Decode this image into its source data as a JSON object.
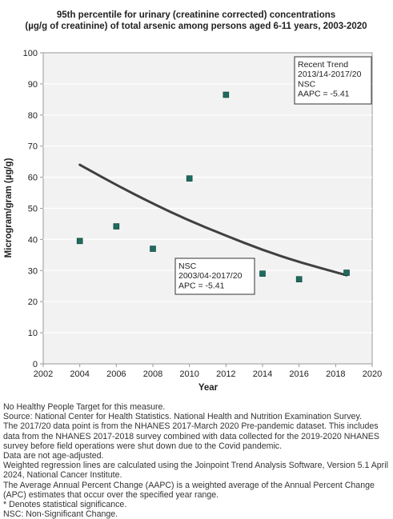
{
  "chart_data": {
    "type": "scatter",
    "title_line1": "95th percentile for urinary (creatinine corrected) concentrations",
    "title_line2": "(µg/g of creatinine) of total arsenic among persons aged 6-11 years, 2003-2020",
    "xlabel": "Year",
    "ylabel": "Microgram/gram (µg/g)",
    "xlim": [
      2002,
      2020
    ],
    "ylim": [
      0,
      100
    ],
    "x_ticks": [
      "2002",
      "2004",
      "2006",
      "2008",
      "2010",
      "2012",
      "2014",
      "2016",
      "2018",
      "2020"
    ],
    "y_ticks": [
      "0",
      "10",
      "20",
      "30",
      "40",
      "50",
      "60",
      "70",
      "80",
      "90",
      "100"
    ],
    "grid": true,
    "points": [
      {
        "x": 2004.0,
        "y": 39.5
      },
      {
        "x": 2006.0,
        "y": 44.2
      },
      {
        "x": 2008.0,
        "y": 37.0
      },
      {
        "x": 2010.0,
        "y": 59.6
      },
      {
        "x": 2012.0,
        "y": 86.5
      },
      {
        "x": 2014.0,
        "y": 29.0
      },
      {
        "x": 2016.0,
        "y": 27.2
      },
      {
        "x": 2018.6,
        "y": 29.3
      }
    ],
    "trend_line": [
      {
        "x": 2004.0,
        "y": 64.0
      },
      {
        "x": 2006.0,
        "y": 57.5
      },
      {
        "x": 2008.0,
        "y": 51.5
      },
      {
        "x": 2010.0,
        "y": 46.0
      },
      {
        "x": 2012.0,
        "y": 41.2
      },
      {
        "x": 2014.0,
        "y": 36.6
      },
      {
        "x": 2016.0,
        "y": 32.7
      },
      {
        "x": 2018.6,
        "y": 28.5
      }
    ],
    "point_color": "#1f6b5e",
    "line_color": "#404040",
    "annotations": {
      "recent_trend": [
        "Recent Trend",
        "2013/14-2017/20",
        "NSC",
        "AAPC = -5.41"
      ],
      "overall_trend": [
        "NSC",
        "2003/04-2017/20",
        "APC = -5.41"
      ]
    }
  },
  "footnotes": [
    "No Healthy People Target for this measure.",
    "Source: National Center for Health Statistics. National Health and Nutrition Examination Survey.",
    "The 2017/20 data point is from the NHANES 2017-March 2020 Pre-pandemic dataset. This includes data from the NHANES 2017-2018 survey combined with data collected for the 2019-2020 NHANES survey before field operations were shut down due to the Covid pandemic.",
    "Data are not age-adjusted.",
    "Weighted regression lines are calculated using the Joinpoint Trend Analysis Software, Version 5.1 April 2024, National Cancer Institute.",
    "The Average Annual Percent Change (AAPC) is a weighted average of the Annual Percent Change (APC) estimates that occur over the specified year range.",
    "* Denotes statistical significance.",
    "NSC: Non-Significant Change."
  ]
}
